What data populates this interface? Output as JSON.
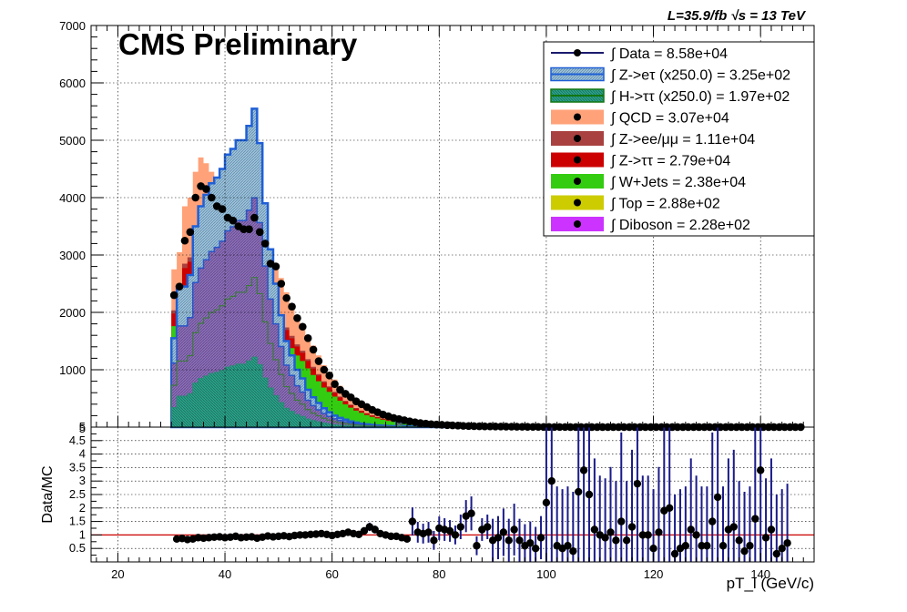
{
  "header": {
    "cms_label": "CMS Preliminary",
    "lumi_label": "L=35.9/fb  √s = 13 TeV"
  },
  "chart_data": [
    {
      "type": "area",
      "panel": "main",
      "xlabel": "",
      "ylabel": "",
      "xlim": [
        15,
        150
      ],
      "ylim": [
        0,
        7000
      ],
      "yticks": [
        "0",
        "1000",
        "2000",
        "3000",
        "4000",
        "5000",
        "6000",
        "7000"
      ],
      "grid": true,
      "legend": "top-right",
      "bin_width": 1,
      "x_start": 30,
      "series": [
        {
          "name": "∫ Data = 8.58e+04",
          "style": "points",
          "color": "#000000",
          "values": [
            2300,
            2450,
            3250,
            3400,
            4000,
            4200,
            4150,
            4000,
            3850,
            3800,
            3650,
            3600,
            3500,
            3450,
            3450,
            3650,
            3400,
            3200,
            2850,
            2800,
            2500,
            2250,
            2100,
            1900,
            1750,
            1550,
            1350,
            1150,
            1000,
            900,
            750,
            650,
            580,
            520,
            450,
            400,
            350,
            300,
            260,
            220,
            190,
            160,
            140,
            120,
            100,
            85,
            70,
            60,
            50,
            45,
            40,
            35,
            30,
            26,
            22,
            19,
            17,
            15,
            13,
            12,
            11,
            10,
            9,
            8,
            7,
            6,
            5,
            4,
            4,
            3,
            3,
            2,
            2,
            2,
            1,
            1,
            1,
            1,
            1,
            1,
            1,
            1,
            1,
            1,
            1,
            1,
            1,
            1,
            1,
            1,
            1,
            1,
            1,
            1,
            1,
            1,
            1,
            1,
            1,
            1,
            1,
            1,
            1,
            1,
            1,
            1,
            1,
            1,
            1,
            1,
            1,
            1,
            1,
            1,
            1,
            1,
            1,
            1
          ]
        },
        {
          "name": "∫ Z->eτ (x250.0) = 3.25e+02",
          "style": "outline",
          "color": "#1f5fd6",
          "fill": "#7fb0c8",
          "values": [
            1550,
            2450,
            2450,
            2650,
            3500,
            3850,
            4050,
            4250,
            4350,
            4500,
            4750,
            4850,
            5000,
            5000,
            5250,
            5550,
            4950,
            3900,
            3100,
            2500,
            1950,
            1500,
            1250,
            1000,
            850,
            650,
            520,
            420,
            330,
            260,
            200,
            160,
            130,
            100,
            80,
            60,
            50,
            40,
            30,
            25,
            20,
            15,
            120,
            15,
            10,
            10,
            8,
            8,
            80,
            5,
            5,
            5,
            4,
            4,
            4,
            3,
            3,
            3,
            3,
            3,
            3,
            3,
            3,
            3,
            3,
            3,
            3,
            3,
            3,
            3,
            3,
            3,
            3,
            3,
            3,
            3,
            3,
            3,
            3,
            3,
            3,
            3,
            3,
            3,
            3,
            3,
            3,
            3,
            3,
            3,
            3,
            3,
            3,
            3,
            3,
            3,
            3,
            3,
            3,
            3,
            3,
            3,
            3,
            3,
            3,
            3,
            3,
            3,
            3,
            3,
            3,
            3,
            3,
            3,
            3,
            3,
            3,
            3
          ]
        },
        {
          "name": "∫ H->ττ (x250.0) = 1.97e+02",
          "style": "outline",
          "color": "#117711",
          "fill": "#2e8b2e",
          "values": []
        },
        {
          "name": "∫ QCD = 3.07e+04",
          "style": "stack",
          "color": "#ffa279",
          "values": [
            2750,
            3050,
            3850,
            4000,
            4450,
            4700,
            4600,
            4450,
            4300,
            4100,
            3950,
            3850,
            3750,
            3650,
            3600,
            3750,
            3550,
            3350,
            3050,
            2850,
            2600,
            2350,
            2150,
            1950,
            1800,
            1600,
            1420,
            1250,
            1080,
            960,
            830,
            720,
            620,
            530,
            450,
            390,
            330,
            280,
            240,
            200,
            170,
            145,
            120,
            100,
            85,
            72,
            60,
            50,
            42,
            36,
            30,
            26,
            22,
            19,
            16,
            14,
            12,
            10,
            9,
            8,
            7,
            6,
            5,
            5,
            4,
            4,
            3,
            3,
            3,
            2,
            2,
            2,
            2,
            2,
            1,
            1,
            1,
            1,
            1,
            1,
            1,
            1,
            1,
            1,
            1,
            1,
            1,
            1,
            1,
            1,
            1,
            1,
            1,
            1,
            1,
            1,
            1,
            1,
            1,
            1,
            1,
            1,
            1,
            1,
            1,
            1,
            1,
            1,
            1,
            1,
            1,
            1,
            1,
            1,
            1,
            1,
            1,
            1
          ]
        },
        {
          "name": "∫ Z->ee/μμ = 1.11e+04",
          "style": "stack",
          "color": "#a8413f",
          "values": []
        },
        {
          "name": "∫ Z->ττ = 2.79e+04",
          "style": "stack",
          "color": "#cc0000",
          "values": []
        },
        {
          "name": "∫ W+Jets = 2.38e+04",
          "style": "stack",
          "color": "#33cc11",
          "values": []
        },
        {
          "name": "∫ Top = 2.88e+02",
          "style": "stack",
          "color": "#cccc00",
          "values": []
        },
        {
          "name": "∫ Diboson = 2.28e+02",
          "style": "stack",
          "color": "#cc33ff",
          "values": []
        }
      ]
    },
    {
      "type": "scatter",
      "panel": "ratio",
      "xlabel": "pT_l (GeV/c)",
      "ylabel": "Data/MC",
      "xlim": [
        15,
        150
      ],
      "ylim": [
        0,
        5
      ],
      "xticks": [
        "20",
        "40",
        "60",
        "80",
        "100",
        "120",
        "140"
      ],
      "yticks": [
        "0.5",
        "1",
        "1.5",
        "2",
        "2.5",
        "3",
        "3.5",
        "4",
        "4.5",
        "5"
      ],
      "reference_line": 1,
      "reference_color": "#cc0000",
      "grid": true,
      "points": [
        {
          "x": 31,
          "y": 0.85
        },
        {
          "x": 32,
          "y": 0.87
        },
        {
          "x": 33,
          "y": 0.83
        },
        {
          "x": 34,
          "y": 0.85
        },
        {
          "x": 35,
          "y": 0.9
        },
        {
          "x": 36,
          "y": 0.88
        },
        {
          "x": 37,
          "y": 0.9
        },
        {
          "x": 38,
          "y": 0.92
        },
        {
          "x": 39,
          "y": 0.93
        },
        {
          "x": 40,
          "y": 0.9
        },
        {
          "x": 41,
          "y": 0.92
        },
        {
          "x": 42,
          "y": 0.95
        },
        {
          "x": 43,
          "y": 0.9
        },
        {
          "x": 44,
          "y": 0.92
        },
        {
          "x": 45,
          "y": 0.93
        },
        {
          "x": 46,
          "y": 0.88
        },
        {
          "x": 47,
          "y": 0.92
        },
        {
          "x": 48,
          "y": 0.96
        },
        {
          "x": 49,
          "y": 0.93
        },
        {
          "x": 50,
          "y": 0.95
        },
        {
          "x": 51,
          "y": 0.97
        },
        {
          "x": 52,
          "y": 0.94
        },
        {
          "x": 53,
          "y": 0.98
        },
        {
          "x": 54,
          "y": 1.0
        },
        {
          "x": 55,
          "y": 1.0
        },
        {
          "x": 56,
          "y": 1.02
        },
        {
          "x": 57,
          "y": 1.03
        },
        {
          "x": 58,
          "y": 1.05
        },
        {
          "x": 59,
          "y": 1.02
        },
        {
          "x": 60,
          "y": 0.98
        },
        {
          "x": 61,
          "y": 1.02
        },
        {
          "x": 62,
          "y": 1.05
        },
        {
          "x": 63,
          "y": 1.1
        },
        {
          "x": 64,
          "y": 1.05
        },
        {
          "x": 65,
          "y": 1.02
        },
        {
          "x": 66,
          "y": 1.15
        },
        {
          "x": 67,
          "y": 1.3
        },
        {
          "x": 68,
          "y": 1.2
        },
        {
          "x": 69,
          "y": 1.05
        },
        {
          "x": 70,
          "y": 1.0
        },
        {
          "x": 71,
          "y": 0.95
        },
        {
          "x": 72,
          "y": 0.95
        },
        {
          "x": 73,
          "y": 0.9
        },
        {
          "x": 74,
          "y": 0.85
        },
        {
          "x": 75,
          "y": 1.5
        },
        {
          "x": 76,
          "y": 1.1
        },
        {
          "x": 77,
          "y": 1.05
        },
        {
          "x": 78,
          "y": 1.1
        },
        {
          "x": 79,
          "y": 0.8
        },
        {
          "x": 80,
          "y": 1.25
        },
        {
          "x": 81,
          "y": 1.2
        },
        {
          "x": 82,
          "y": 1.15
        },
        {
          "x": 83,
          "y": 1.0
        },
        {
          "x": 84,
          "y": 1.3
        },
        {
          "x": 85,
          "y": 1.7
        },
        {
          "x": 86,
          "y": 1.8
        },
        {
          "x": 87,
          "y": 0.6
        },
        {
          "x": 88,
          "y": 1.2
        },
        {
          "x": 89,
          "y": 1.3
        },
        {
          "x": 90,
          "y": 0.8
        },
        {
          "x": 91,
          "y": 0.9
        },
        {
          "x": 92,
          "y": 1.1
        },
        {
          "x": 93,
          "y": 0.8
        },
        {
          "x": 94,
          "y": 1.2
        },
        {
          "x": 95,
          "y": 0.8
        },
        {
          "x": 96,
          "y": 0.6
        },
        {
          "x": 97,
          "y": 0.7
        },
        {
          "x": 98,
          "y": 0.5
        },
        {
          "x": 99,
          "y": 0.9
        },
        {
          "x": 100,
          "y": 2.2
        },
        {
          "x": 101,
          "y": 3.0
        },
        {
          "x": 102,
          "y": 0.6
        },
        {
          "x": 103,
          "y": 0.5
        },
        {
          "x": 104,
          "y": 0.6
        },
        {
          "x": 105,
          "y": 0.4
        },
        {
          "x": 106,
          "y": 2.6
        },
        {
          "x": 107,
          "y": 3.4
        },
        {
          "x": 108,
          "y": 2.5
        },
        {
          "x": 109,
          "y": 1.2
        },
        {
          "x": 110,
          "y": 1.0
        },
        {
          "x": 111,
          "y": 0.9
        },
        {
          "x": 112,
          "y": 1.1
        },
        {
          "x": 113,
          "y": 0.8
        },
        {
          "x": 114,
          "y": 1.5
        },
        {
          "x": 115,
          "y": 0.8
        },
        {
          "x": 116,
          "y": 1.3
        },
        {
          "x": 117,
          "y": 2.9
        },
        {
          "x": 118,
          "y": 1.0
        },
        {
          "x": 119,
          "y": 1.0
        },
        {
          "x": 120,
          "y": 0.5
        },
        {
          "x": 121,
          "y": 1.1
        },
        {
          "x": 122,
          "y": 1.9
        },
        {
          "x": 123,
          "y": 2.0
        },
        {
          "x": 124,
          "y": 0.3
        },
        {
          "x": 125,
          "y": 0.5
        },
        {
          "x": 126,
          "y": 0.6
        },
        {
          "x": 127,
          "y": 1.2
        },
        {
          "x": 128,
          "y": 1.0
        },
        {
          "x": 129,
          "y": 0.6
        },
        {
          "x": 130,
          "y": 0.6
        },
        {
          "x": 131,
          "y": 1.5
        },
        {
          "x": 132,
          "y": 2.4
        },
        {
          "x": 133,
          "y": 0.6
        },
        {
          "x": 134,
          "y": 1.2
        },
        {
          "x": 135,
          "y": 1.3
        },
        {
          "x": 136,
          "y": 0.8
        },
        {
          "x": 137,
          "y": 0.4
        },
        {
          "x": 138,
          "y": 0.6
        },
        {
          "x": 139,
          "y": 1.6
        },
        {
          "x": 140,
          "y": 3.4
        },
        {
          "x": 141,
          "y": 0.9
        },
        {
          "x": 142,
          "y": 1.2
        },
        {
          "x": 143,
          "y": 0.3
        },
        {
          "x": 144,
          "y": 0.5
        },
        {
          "x": 145,
          "y": 0.7
        }
      ]
    }
  ]
}
